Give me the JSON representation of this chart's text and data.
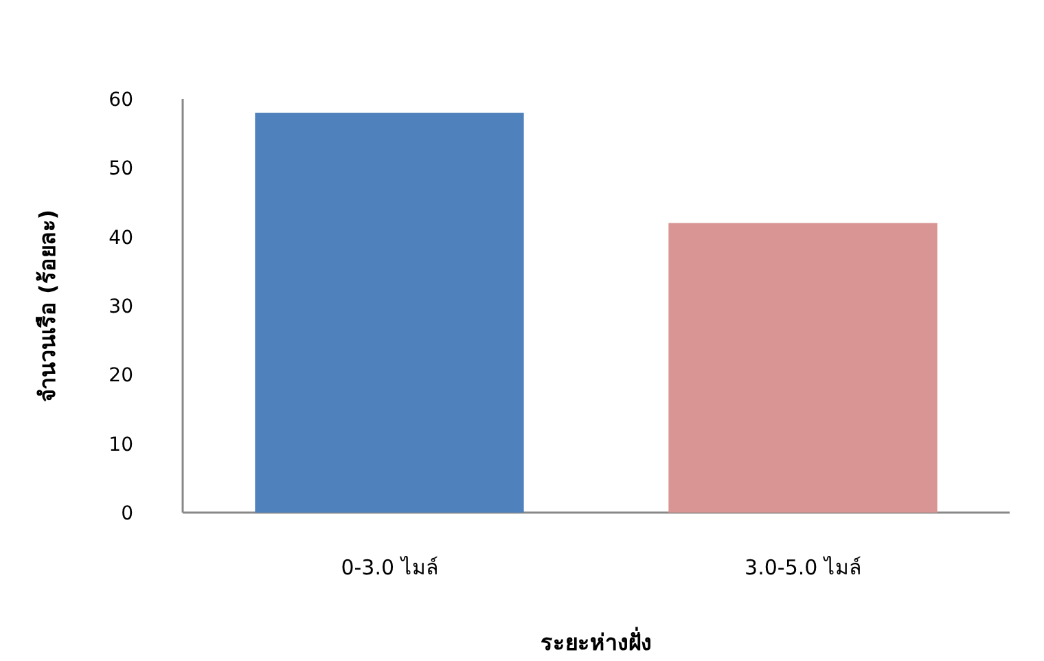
{
  "chart_data": {
    "type": "bar",
    "xlabel": "ระยะห่างฝั่ง",
    "ylabel": "จำนวนเรือ (ร้อยละ)",
    "categories": [
      "0-3.0 ไมล์",
      "3.0-5.0 ไมล์"
    ],
    "values": [
      58,
      42
    ],
    "colors": [
      "#4f81bd",
      "#d99594"
    ],
    "ylim": [
      0,
      60
    ],
    "yticks": [
      0,
      10,
      20,
      30,
      40,
      50,
      60
    ],
    "grid": false
  }
}
